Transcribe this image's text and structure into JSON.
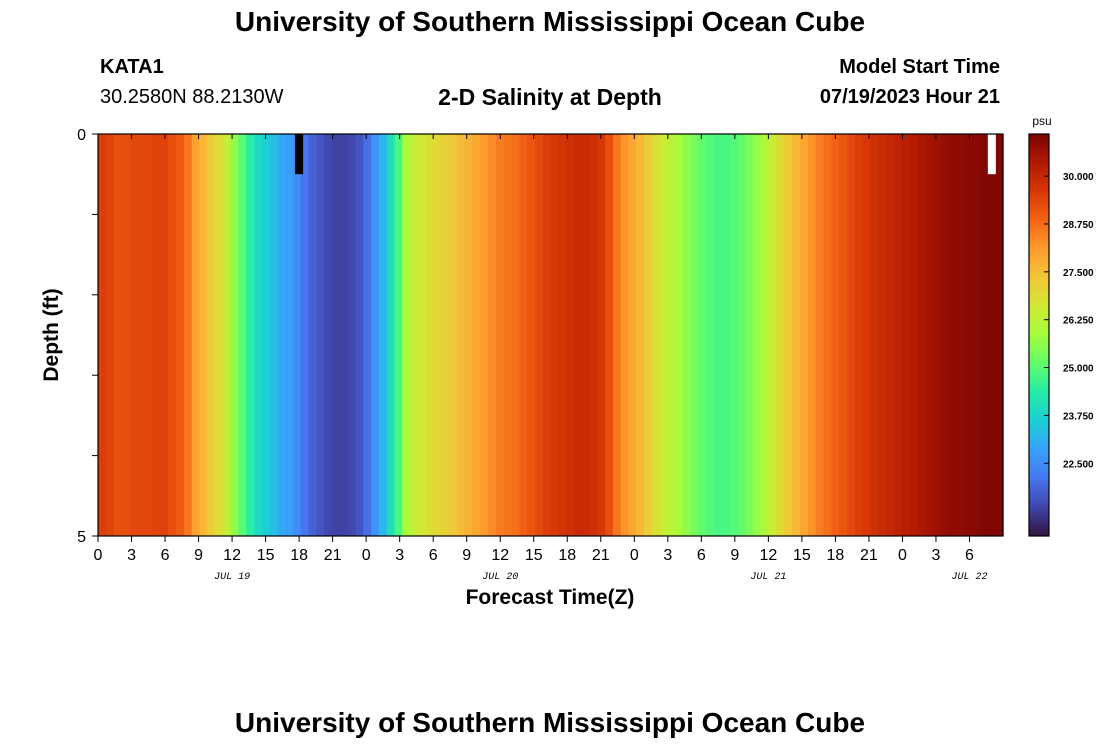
{
  "header": {
    "title": "University of Southern Mississippi Ocean Cube",
    "station": "KATA1",
    "coordinates": "30.2580N  88.2130W",
    "subtitle": "2-D Salinity at Depth",
    "model_start_label": "Model Start Time",
    "model_start_value": "07/19/2023 Hour 21"
  },
  "footer": {
    "title": "University of Southern Mississippi Ocean Cube"
  },
  "colors": {
    "palette": [
      "#30123b",
      "#4145ab",
      "#4675ed",
      "#39a2fc",
      "#1bcfd4",
      "#24eca6",
      "#61fc6c",
      "#a4fc3b",
      "#d1e834",
      "#f3c63a",
      "#fe9b2d",
      "#f36315",
      "#d93806",
      "#b11901",
      "#7a0402"
    ],
    "missing_mark": "#000000",
    "gap_mark": "#ffffff"
  },
  "chart_data": {
    "type": "heatmap",
    "xlabel": "Forecast Time(Z)",
    "ylabel": "Depth (ft)",
    "x_range_hours": [
      0,
      81
    ],
    "y_range": [
      0,
      5
    ],
    "y_ticks": [
      "0",
      "5"
    ],
    "x_tick_labels": [
      "0",
      "3",
      "6",
      "9",
      "12",
      "15",
      "18",
      "21",
      "0",
      "3",
      "6",
      "9",
      "12",
      "15",
      "18",
      "21",
      "0",
      "3",
      "6",
      "9",
      "12",
      "15",
      "18",
      "21",
      "0",
      "3",
      "6"
    ],
    "date_labels": [
      {
        "label": "JUL 19",
        "hour": 12
      },
      {
        "label": "JUL 20",
        "hour": 36
      },
      {
        "label": "JUL 21",
        "hour": 60
      },
      {
        "label": "JUL 22",
        "hour": 78
      }
    ],
    "colorbar": {
      "unit": "psu",
      "range": [
        20.6,
        31.1
      ],
      "ticks": [
        "30.000",
        "28.750",
        "27.500",
        "26.250",
        "25.000",
        "23.750",
        "22.500"
      ],
      "tick_values": [
        30.0,
        28.75,
        27.5,
        26.25,
        25.0,
        23.75,
        22.5
      ]
    },
    "salinity_psu": [
      29.5,
      29.4,
      29.2,
      29.2,
      29.3,
      29.3,
      29.3,
      29.4,
      29.4,
      29.2,
      29.0,
      28.6,
      28.0,
      27.6,
      27.2,
      26.8,
      26.4,
      25.6,
      25.0,
      24.4,
      23.9,
      23.6,
      23.3,
      23.0,
      22.8,
      22.5,
      22.1,
      21.8,
      21.6,
      21.4,
      21.3,
      21.3,
      21.4,
      21.6,
      22.0,
      22.6,
      23.2,
      24.0,
      24.8,
      25.9,
      26.3,
      26.6,
      26.8,
      27.0,
      27.1,
      27.3,
      27.5,
      27.7,
      27.9,
      28.1,
      28.3,
      28.5,
      28.6,
      28.7,
      28.9,
      29.1,
      29.3,
      29.5,
      29.6,
      29.7,
      29.8,
      29.9,
      29.9,
      29.8,
      29.6,
      29.2,
      28.6,
      28.2,
      27.9,
      27.6,
      27.2,
      26.8,
      26.5,
      26.2,
      25.9,
      25.6,
      25.3,
      25.1,
      24.9,
      24.8,
      24.8,
      24.9,
      25.1,
      25.4,
      25.7,
      26.1,
      26.5,
      26.9,
      27.3,
      27.6,
      27.9,
      28.2,
      28.5,
      28.7,
      28.9,
      29.1,
      29.3,
      29.5,
      29.6,
      29.8,
      29.9,
      30.0,
      30.1,
      30.2,
      30.3,
      30.4,
      30.5,
      30.6,
      30.7,
      30.8,
      30.8,
      30.9,
      30.9,
      31.0,
      31.0,
      31.0
    ],
    "annotations": [
      {
        "kind": "missing-value",
        "hour": 18,
        "depth_range": [
          0,
          0.5
        ],
        "color": "#000000"
      },
      {
        "kind": "gap",
        "hour": 80,
        "depth_range": [
          0,
          0.5
        ],
        "color": "#ffffff"
      }
    ]
  }
}
